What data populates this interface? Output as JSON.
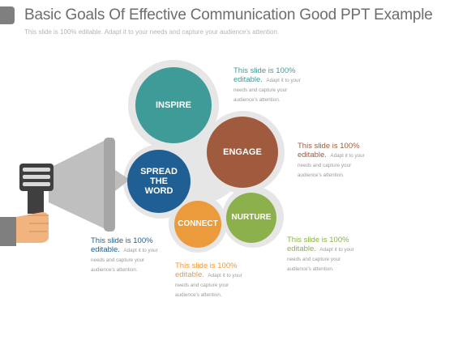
{
  "header": {
    "title": "Basic Goals Of Effective Communication Good PPT Example",
    "subtitle": "This slide is 100% editable. Adapt it to your needs and capture your audience's attention."
  },
  "colors": {
    "inspire": "#3f9b98",
    "engage": "#a05a3d",
    "spread": "#1f5f93",
    "connect": "#eb9a3c",
    "nurture": "#8cb04b",
    "backdrop": "#e6e6e6",
    "megaphone": "#bfbfbf",
    "handle": "#3f3f3f",
    "hand": "#f2b47e",
    "sleeve": "#7f7f7f"
  },
  "icons": [
    "megaphone-icon",
    "hand-icon"
  ],
  "diagram": {
    "nodes": [
      {
        "id": "inspire",
        "label": "INSPIRE"
      },
      {
        "id": "engage",
        "label": "ENGAGE"
      },
      {
        "id": "spread",
        "label": "SPREAD THE WORD"
      },
      {
        "id": "connect",
        "label": "CONNECT"
      },
      {
        "id": "nurture",
        "label": "NURTURE"
      }
    ]
  },
  "captions": {
    "inspire": {
      "head": "This slide is 100% editable.",
      "body": "Adapt it to your needs and capture your audience's attention."
    },
    "engage": {
      "head": "This slide is 100% editable.",
      "body": "Adapt it to your needs and capture your audience's attention."
    },
    "spread": {
      "head": "This slide is 100% editable.",
      "body": "Adapt it to your needs and capture your audience's attention."
    },
    "connect": {
      "head": "This slide is 100% editable.",
      "body": "Adapt it to your needs and capture your audience's attention."
    },
    "nurture": {
      "head": "This slide is 100% editable.",
      "body": "Adapt it to your needs and capture your audience's attention."
    }
  }
}
